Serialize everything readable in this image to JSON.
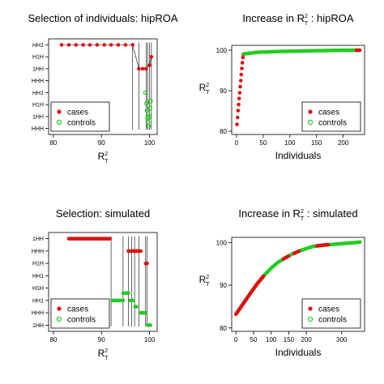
{
  "colors": {
    "cases": "#dd1111",
    "controls": "#22cc22",
    "axis": "#000000"
  },
  "chart_data": [
    {
      "type": "scatter",
      "title": "Selection of individuals: hipROA",
      "xlabel": "R",
      "xlabel_sup": "2",
      "xlabel_sub": "T",
      "xlim": [
        79,
        101.6
      ],
      "xticks": [
        "80",
        "90",
        "100"
      ],
      "xtick_values": [
        80,
        90,
        100
      ],
      "ylim": [
        0.5,
        8.5
      ],
      "ytick_labels": [
        "HHH",
        "1HH",
        "H1H",
        "HH1",
        "HHH",
        "1HH",
        "H1H",
        "HH1"
      ],
      "ytick_positions": [
        1,
        2,
        3,
        4,
        5,
        6,
        7,
        8
      ],
      "legend": [
        "cases",
        "controls"
      ],
      "legend_position": "bottom-left",
      "series": [
        {
          "name": "cases",
          "points": [
            [
              81.7,
              8
            ],
            [
              83.2,
              8
            ],
            [
              84.7,
              8
            ],
            [
              86.2,
              8
            ],
            [
              87.6,
              8
            ],
            [
              89.1,
              8
            ],
            [
              90.6,
              8
            ],
            [
              92.0,
              8
            ],
            [
              93.5,
              8
            ],
            [
              95.0,
              8
            ],
            [
              96.5,
              8
            ],
            [
              97.8,
              6
            ],
            [
              98.6,
              6
            ],
            [
              99.3,
              6
            ],
            [
              100.0,
              6.3
            ],
            [
              100.4,
              7
            ]
          ]
        },
        {
          "name": "controls",
          "points": [
            [
              99.2,
              4
            ],
            [
              99.4,
              3.1
            ],
            [
              99.5,
              2.5
            ],
            [
              99.6,
              1.9
            ],
            [
              99.7,
              1.5
            ],
            [
              99.8,
              1.2
            ],
            [
              99.9,
              2
            ],
            [
              100.0,
              2
            ],
            [
              100.1,
              2.7
            ],
            [
              100.2,
              3.3
            ]
          ]
        }
      ],
      "drop_lines": [
        96.5,
        97.8,
        99.3,
        99.6,
        100.0,
        100.4
      ]
    },
    {
      "type": "scatter",
      "title": "Increase in R",
      "title_sup": "2",
      "title_sub": "T",
      "title_suffix": ": hipROA",
      "xlabel": "Individuals",
      "ylabel": "R",
      "ylabel_sup": "2",
      "ylabel_sub": "T",
      "xlim": [
        -9,
        240
      ],
      "xticks": [
        "0",
        "50",
        "100",
        "150",
        "200"
      ],
      "xtick_values": [
        0,
        50,
        100,
        150,
        200
      ],
      "ylim": [
        79.2,
        101.2
      ],
      "yticks": [
        "80",
        "90",
        "100"
      ],
      "ytick_values": [
        80,
        90,
        100
      ],
      "legend": [
        "cases",
        "controls"
      ],
      "legend_position": "bottom-right",
      "cases_curve": [
        [
          1,
          81.7
        ],
        [
          2,
          83.4
        ],
        [
          3,
          85.1
        ],
        [
          4,
          86.6
        ],
        [
          5,
          88.1
        ],
        [
          6,
          89.5
        ],
        [
          7,
          91
        ],
        [
          8,
          92.5
        ],
        [
          9,
          94
        ],
        [
          10,
          95.5
        ],
        [
          11,
          96.9
        ],
        [
          12,
          98.2
        ],
        [
          13,
          99
        ]
      ],
      "controls_curve": [
        [
          14,
          99.1
        ],
        [
          40,
          99.5
        ],
        [
          80,
          99.7
        ],
        [
          120,
          99.8
        ],
        [
          160,
          99.9
        ],
        [
          200,
          100
        ],
        [
          230,
          100
        ]
      ],
      "cases_end": [
        [
          225,
          100
        ],
        [
          228,
          100
        ],
        [
          231,
          100
        ]
      ]
    },
    {
      "type": "scatter",
      "title": "Selection: simulated",
      "xlabel": "R",
      "xlabel_sup": "2",
      "xlabel_sub": "T",
      "xlim": [
        79,
        101.6
      ],
      "xticks": [
        "80",
        "90",
        "100"
      ],
      "xtick_values": [
        80,
        90,
        100
      ],
      "ylim": [
        0.5,
        8.5
      ],
      "ytick_labels": [
        "1HH",
        "HHH",
        "HH1",
        "H1H",
        "HH1",
        "H1H",
        "HHH",
        "1HH"
      ],
      "ytick_positions": [
        1,
        2,
        3,
        4,
        5,
        6,
        7,
        8
      ],
      "legend": [
        "cases",
        "controls"
      ],
      "legend_position": "bottom-left",
      "segments": [
        {
          "name": "cases",
          "from": 83.2,
          "to": 91.8,
          "y": 8
        },
        {
          "name": "controls",
          "from": 92.3,
          "to": 94.5,
          "y": 3
        },
        {
          "name": "controls",
          "from": 94.5,
          "to": 95.6,
          "y": 3.6
        },
        {
          "name": "cases",
          "from": 95.6,
          "to": 96.0,
          "y": 7
        },
        {
          "name": "controls",
          "from": 96.0,
          "to": 96.6,
          "y": 3
        },
        {
          "name": "cases",
          "from": 96.6,
          "to": 97.0,
          "y": 7
        },
        {
          "name": "controls",
          "from": 97.0,
          "to": 97.3,
          "y": 2.5
        },
        {
          "name": "cases",
          "from": 97.3,
          "to": 98.2,
          "y": 7
        },
        {
          "name": "controls",
          "from": 98.2,
          "to": 99.2,
          "y": 2
        },
        {
          "name": "cases",
          "from": 99.2,
          "to": 99.5,
          "y": 6
        },
        {
          "name": "controls",
          "from": 99.6,
          "to": 100.2,
          "y": 1
        }
      ],
      "drop_lines": [
        92.0,
        94.5,
        95.6,
        96.3,
        96.9,
        97.8,
        99.2,
        99.5
      ]
    },
    {
      "type": "scatter",
      "title": "Increase in R",
      "title_sup": "2",
      "title_sub": "T",
      "title_suffix": ": simulated",
      "xlabel": "Individuals",
      "ylabel": "R",
      "ylabel_sup": "2",
      "ylabel_sub": "T",
      "xlim": [
        -12,
        365
      ],
      "xticks": [
        "0",
        "50",
        "100",
        "150",
        "200",
        "300"
      ],
      "xtick_values": [
        0,
        50,
        100,
        150,
        200,
        300
      ],
      "ylim": [
        79.2,
        101.2
      ],
      "yticks": [
        "80",
        "90",
        "100"
      ],
      "ytick_values": [
        80,
        90,
        100
      ],
      "legend": [
        "cases",
        "controls"
      ],
      "legend_position": "bottom-right",
      "curve": [
        [
          0,
          83.2
        ],
        [
          20,
          85.6
        ],
        [
          40,
          88
        ],
        [
          60,
          90.3
        ],
        [
          80,
          92.3
        ],
        [
          100,
          94
        ],
        [
          120,
          95.4
        ],
        [
          140,
          96.4
        ],
        [
          160,
          97.3
        ],
        [
          180,
          98
        ],
        [
          200,
          98.6
        ],
        [
          220,
          99.1
        ],
        [
          250,
          99.4
        ],
        [
          280,
          99.6
        ],
        [
          310,
          99.8
        ],
        [
          340,
          100
        ],
        [
          352,
          100.1
        ]
      ],
      "case_ranges": [
        [
          0,
          78
        ],
        [
          135,
          150
        ],
        [
          165,
          180
        ],
        [
          230,
          262
        ]
      ]
    }
  ]
}
